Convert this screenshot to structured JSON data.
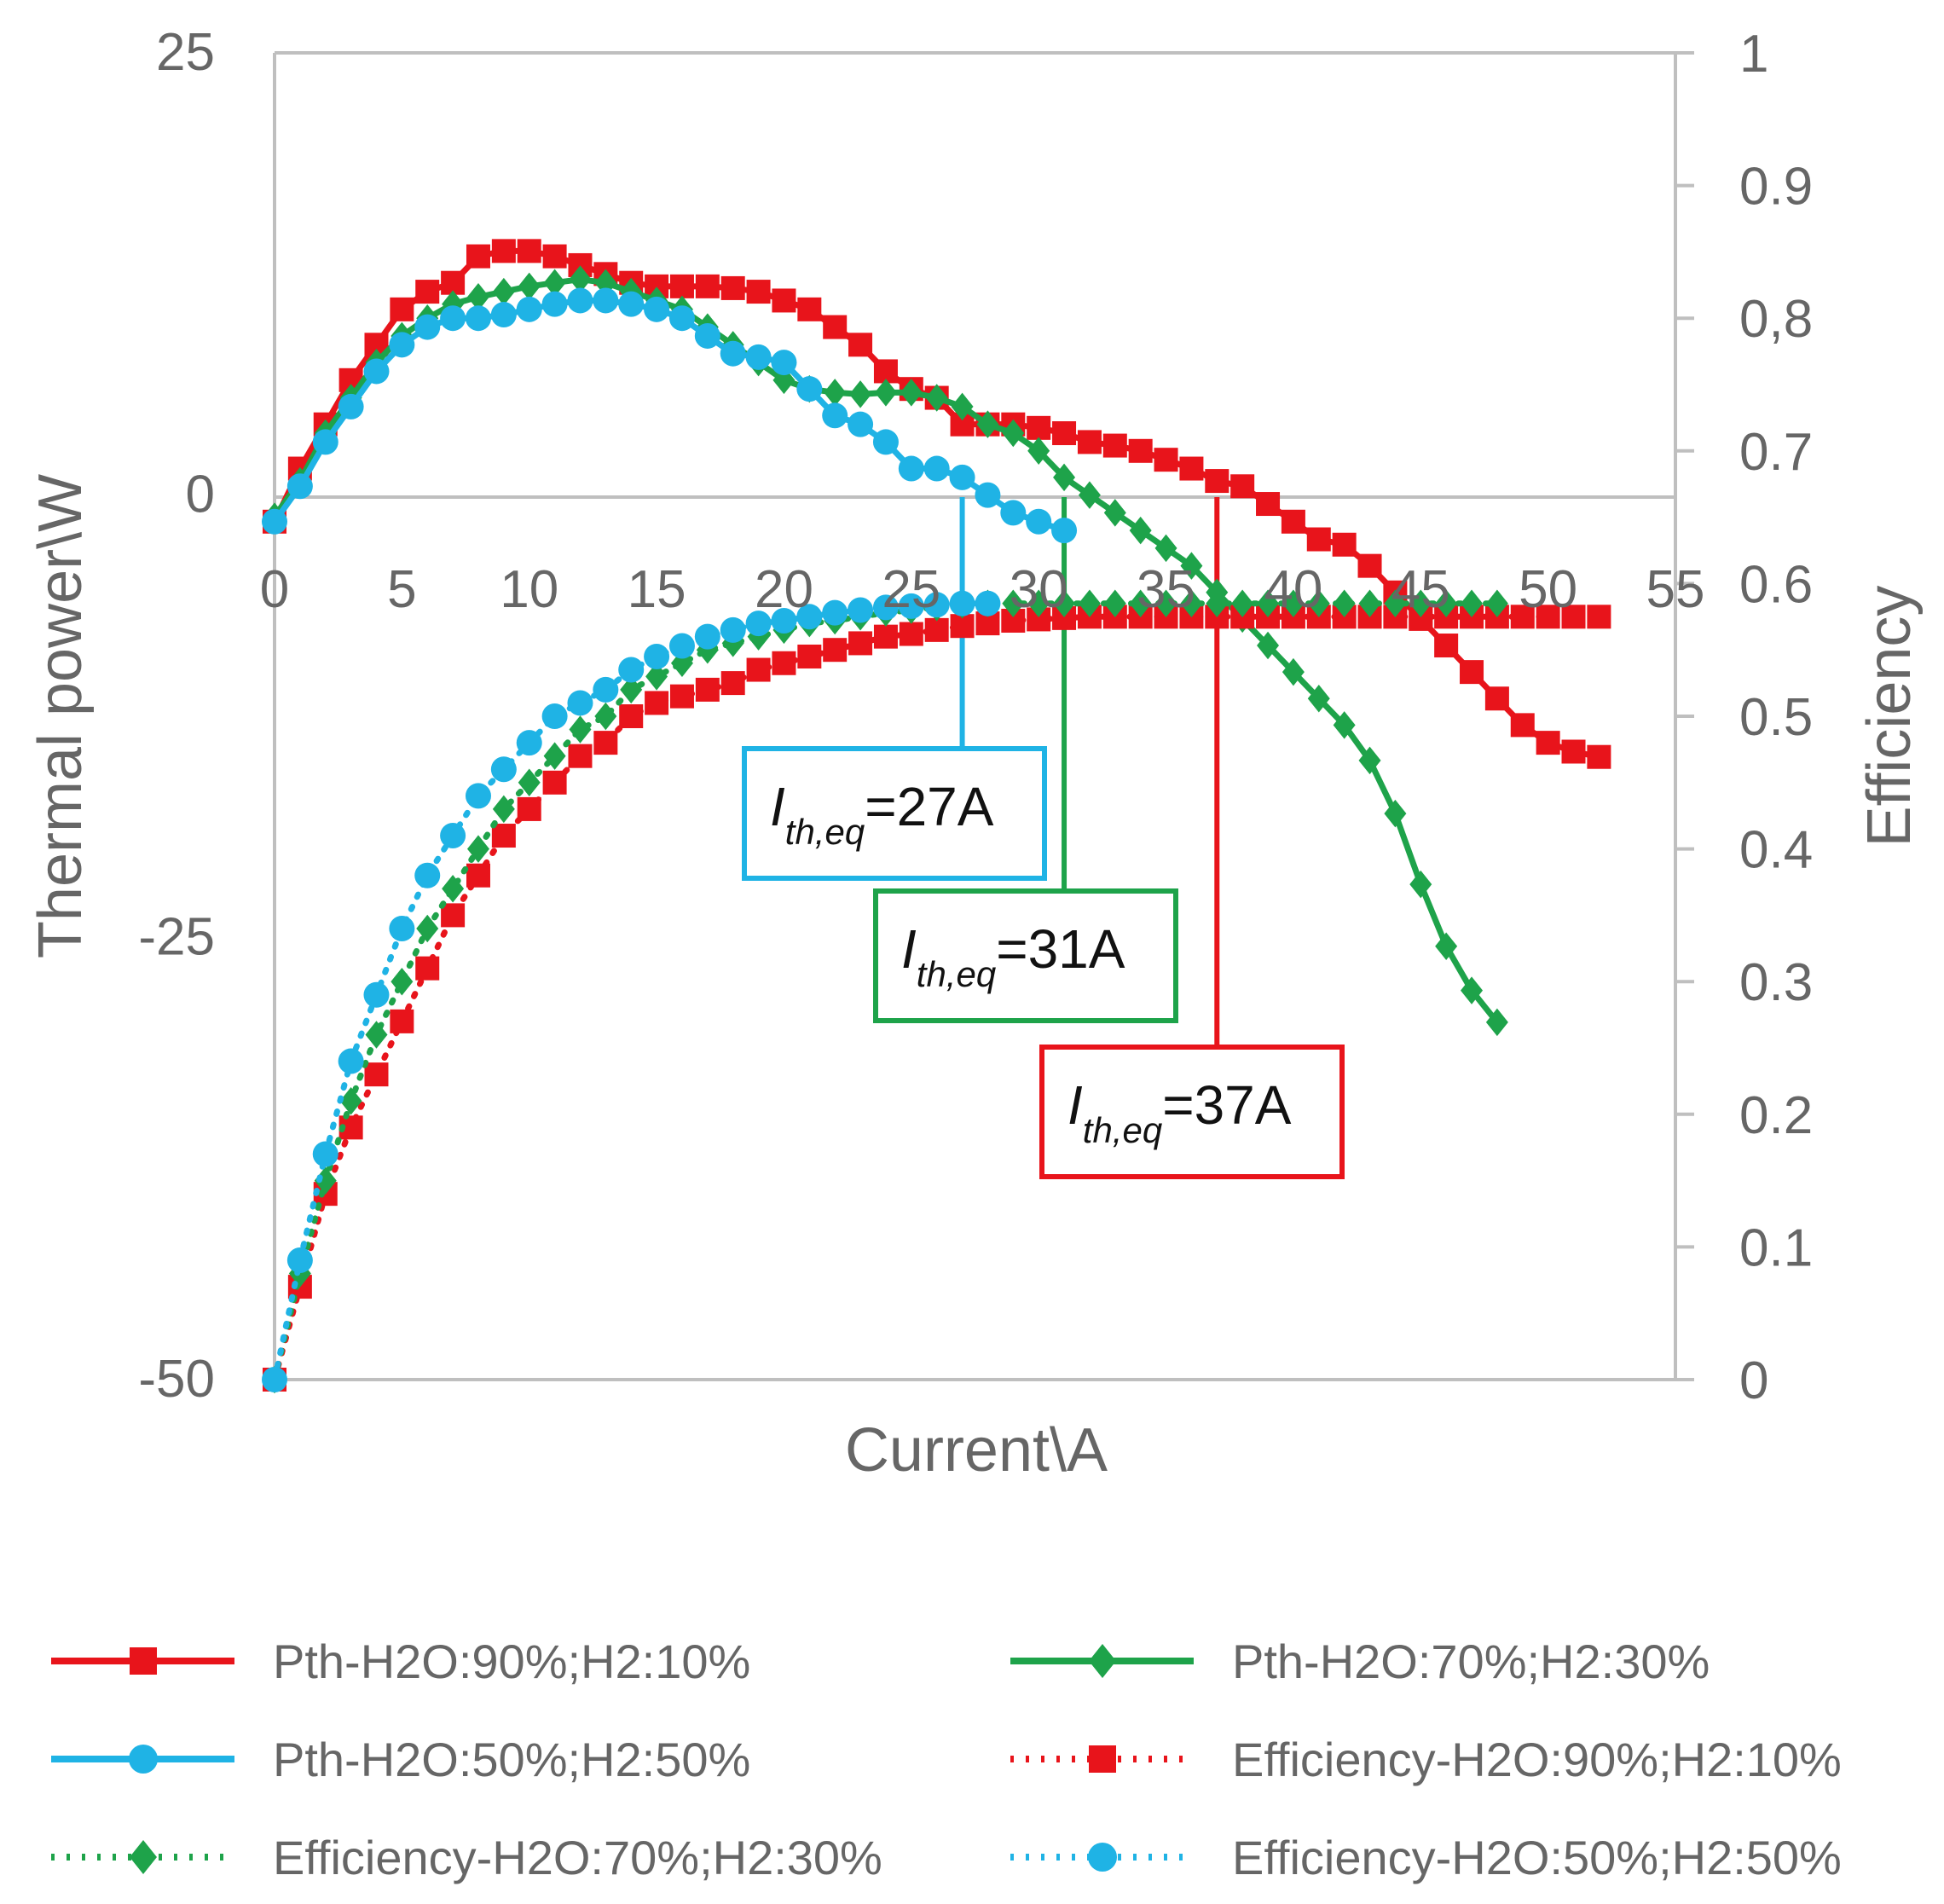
{
  "chart_data": {
    "type": "line",
    "title": "",
    "xlabel": "Current\\A",
    "ylabel": "Thermal power\\W",
    "y2label": "Efficiency",
    "xlim": [
      0,
      55
    ],
    "ylim": [
      -50,
      25
    ],
    "y2lim": [
      0,
      1
    ],
    "x_ticks": [
      "0",
      "5",
      "10",
      "15",
      "20",
      "25",
      "30",
      "35",
      "40",
      "45",
      "50",
      "55"
    ],
    "y_ticks": [
      "25",
      "0",
      "-25",
      "-50"
    ],
    "y2_ticks": [
      "1",
      "0.9",
      "0,8",
      "0.7",
      "0.6",
      "0.5",
      "0.4",
      "0.3",
      "0.2",
      "0.1",
      "0"
    ],
    "grid": false,
    "legend_position": "bottom",
    "series": [
      {
        "name": "Pth-H2O:90%;H2:10%",
        "axis": "left",
        "color": "#e8141b",
        "marker": "square",
        "dash": "solid",
        "x": [
          0,
          1,
          2,
          3,
          4,
          5,
          6,
          7,
          8,
          9,
          10,
          11,
          12,
          13,
          14,
          15,
          16,
          17,
          18,
          19,
          20,
          21,
          22,
          23,
          24,
          25,
          26,
          27,
          28,
          29,
          30,
          31,
          32,
          33,
          34,
          35,
          36,
          37,
          38,
          39,
          40,
          41,
          42,
          43,
          44,
          45,
          46,
          47,
          48,
          49,
          50,
          51,
          52
        ],
        "values": [
          -1.5,
          1.5,
          4,
          6.5,
          8.5,
          10.5,
          11.5,
          12,
          13.5,
          13.8,
          13.8,
          13.5,
          13,
          12.5,
          12,
          11.8,
          11.8,
          11.8,
          11.7,
          11.5,
          11,
          10.5,
          9.5,
          8.5,
          7,
          6,
          5.5,
          4,
          4,
          4,
          3.8,
          3.5,
          3,
          2.8,
          2.5,
          2,
          1.5,
          0.8,
          0.5,
          -0.5,
          -1.5,
          -2.5,
          -2.8,
          -4,
          -5.5,
          -7,
          -8.5,
          -10,
          -11.5,
          -13,
          -14,
          -14.5,
          -14.8
        ]
      },
      {
        "name": "Pth-H2O:70%;H2:30%",
        "axis": "left",
        "color": "#1ea34a",
        "marker": "diamond",
        "dash": "solid",
        "x": [
          0,
          1,
          2,
          3,
          4,
          5,
          6,
          7,
          8,
          9,
          10,
          11,
          12,
          13,
          14,
          15,
          16,
          17,
          18,
          19,
          20,
          21,
          22,
          23,
          24,
          25,
          26,
          27,
          28,
          29,
          30,
          31,
          32,
          33,
          34,
          35,
          36,
          37,
          38,
          39,
          40,
          41,
          42,
          43,
          44,
          45,
          46,
          47,
          48
        ],
        "values": [
          -1.2,
          0.8,
          3.5,
          5.5,
          7.5,
          9,
          10,
          10.8,
          11.2,
          11.5,
          11.8,
          12,
          12.2,
          12,
          11.5,
          11,
          10.5,
          9.5,
          8.5,
          7.5,
          6.5,
          6,
          5.8,
          5.7,
          5.8,
          5.8,
          5.5,
          5,
          4,
          3.5,
          2.5,
          1,
          0,
          -1,
          -2,
          -3,
          -4,
          -5.5,
          -7,
          -8.5,
          -10,
          -11.5,
          -13,
          -15,
          -18,
          -22,
          -25.5,
          -28,
          -29.8
        ]
      },
      {
        "name": "Pth-H2O:50%;H2:50%",
        "axis": "left",
        "color": "#1fb3e5",
        "marker": "circle",
        "dash": "solid",
        "x": [
          0,
          1,
          2,
          3,
          4,
          5,
          6,
          7,
          8,
          9,
          10,
          11,
          12,
          13,
          14,
          15,
          16,
          17,
          18,
          19,
          20,
          21,
          22,
          23,
          24,
          25,
          26,
          27,
          28,
          29,
          30,
          31
        ],
        "values": [
          -1.5,
          0.5,
          3,
          5,
          7,
          8.5,
          9.5,
          10,
          10,
          10.2,
          10.5,
          10.8,
          11,
          11,
          10.8,
          10.5,
          10,
          9,
          8,
          7.8,
          7.5,
          6,
          4.5,
          4,
          3,
          1.5,
          1.5,
          1,
          0,
          -1,
          -1.5,
          -2
        ]
      },
      {
        "name": "Efficiency-H2O:90%;H2:10%",
        "axis": "right",
        "color": "#e8141b",
        "marker": "square",
        "dash": "dotted",
        "x": [
          0,
          1,
          2,
          3,
          4,
          5,
          6,
          7,
          8,
          9,
          10,
          11,
          12,
          13,
          14,
          15,
          16,
          17,
          18,
          19,
          20,
          21,
          22,
          23,
          24,
          25,
          26,
          27,
          28,
          29,
          30,
          31,
          32,
          33,
          34,
          35,
          36,
          37,
          38,
          39,
          40,
          41,
          42,
          43,
          44,
          45,
          46,
          47,
          48,
          49,
          50,
          51,
          52
        ],
        "values": [
          0.0,
          0.07,
          0.14,
          0.19,
          0.23,
          0.27,
          0.31,
          0.35,
          0.38,
          0.41,
          0.43,
          0.45,
          0.47,
          0.48,
          0.5,
          0.51,
          0.515,
          0.52,
          0.525,
          0.535,
          0.54,
          0.545,
          0.55,
          0.555,
          0.56,
          0.562,
          0.565,
          0.568,
          0.57,
          0.572,
          0.573,
          0.574,
          0.575,
          0.575,
          0.575,
          0.575,
          0.575,
          0.575,
          0.575,
          0.575,
          0.575,
          0.575,
          0.575,
          0.575,
          0.575,
          0.575,
          0.575,
          0.575,
          0.575,
          0.575,
          0.575,
          0.575,
          0.575
        ]
      },
      {
        "name": "Efficiency-H2O:70%;H2:30%",
        "axis": "right",
        "color": "#1ea34a",
        "marker": "diamond",
        "dash": "dotted",
        "x": [
          0,
          1,
          2,
          3,
          4,
          5,
          6,
          7,
          8,
          9,
          10,
          11,
          12,
          13,
          14,
          15,
          16,
          17,
          18,
          19,
          20,
          21,
          22,
          23,
          24,
          25,
          26,
          27,
          28,
          29,
          30,
          31,
          32,
          33,
          34,
          35,
          36,
          37,
          38,
          39,
          40,
          41,
          42,
          43,
          44,
          45,
          46,
          47,
          48
        ],
        "values": [
          0.0,
          0.08,
          0.15,
          0.21,
          0.26,
          0.3,
          0.34,
          0.37,
          0.4,
          0.43,
          0.45,
          0.47,
          0.49,
          0.5,
          0.52,
          0.53,
          0.54,
          0.55,
          0.555,
          0.56,
          0.565,
          0.57,
          0.572,
          0.575,
          0.578,
          0.58,
          0.582,
          0.584,
          0.585,
          0.585,
          0.585,
          0.585,
          0.585,
          0.585,
          0.585,
          0.585,
          0.585,
          0.585,
          0.585,
          0.585,
          0.585,
          0.585,
          0.585,
          0.585,
          0.585,
          0.585,
          0.585,
          0.585,
          0.585
        ]
      },
      {
        "name": "Efficiency-H2O:50%;H2:50%",
        "axis": "right",
        "color": "#1fb3e5",
        "marker": "circle",
        "dash": "dotted",
        "x": [
          0,
          1,
          2,
          3,
          4,
          5,
          6,
          7,
          8,
          9,
          10,
          11,
          12,
          13,
          14,
          15,
          16,
          17,
          18,
          19,
          20,
          21,
          22,
          23,
          24,
          25,
          26,
          27,
          28
        ],
        "values": [
          0.0,
          0.09,
          0.17,
          0.24,
          0.29,
          0.34,
          0.38,
          0.41,
          0.44,
          0.46,
          0.48,
          0.5,
          0.51,
          0.52,
          0.535,
          0.545,
          0.553,
          0.56,
          0.565,
          0.57,
          0.572,
          0.575,
          0.578,
          0.58,
          0.582,
          0.583,
          0.584,
          0.585,
          0.585
        ]
      }
    ],
    "annotations": [
      {
        "var": "I",
        "sub": "th,eq",
        "value": "=27A",
        "x": 27,
        "color": "#1fb3e5"
      },
      {
        "var": "I",
        "sub": "th,eq",
        "value": "=31A",
        "x": 31,
        "color": "#1ea34a"
      },
      {
        "var": "I",
        "sub": "th,eq",
        "value": "=37A",
        "x": 37,
        "color": "#e8141b"
      }
    ]
  }
}
